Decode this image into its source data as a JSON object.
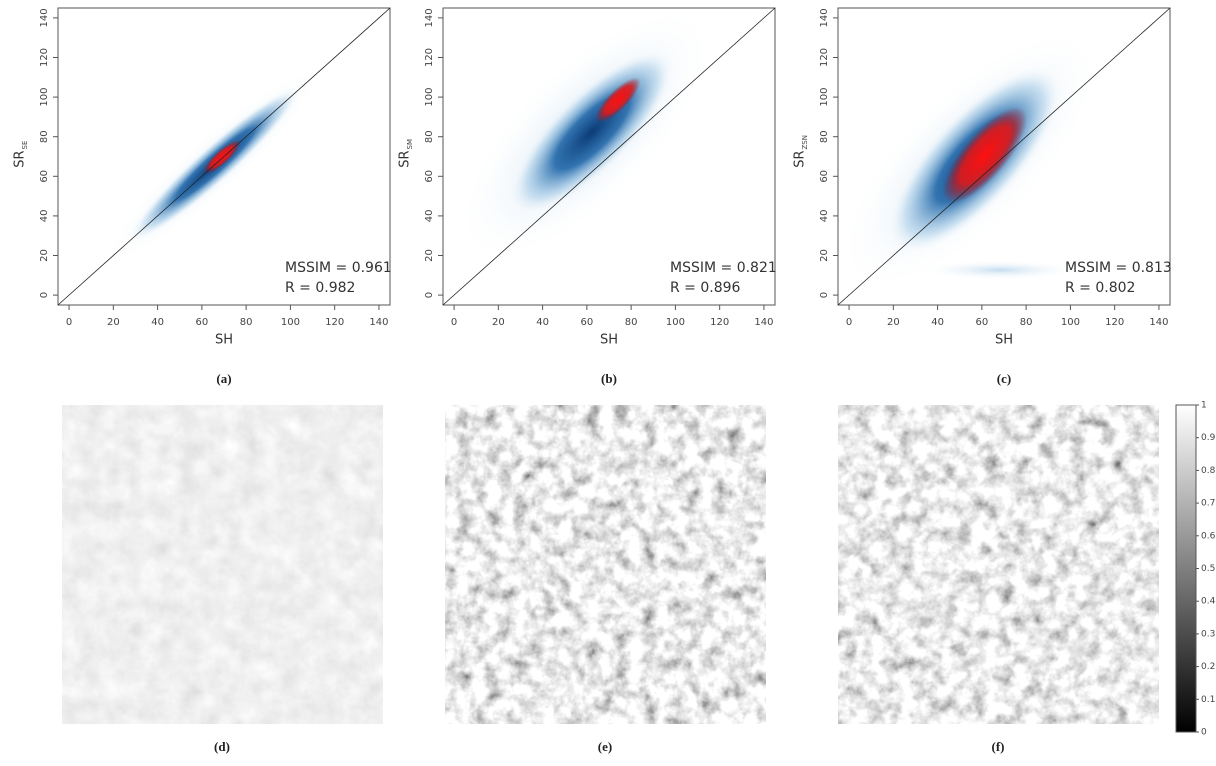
{
  "chart_data": [
    {
      "type": "density",
      "panel_label": "(a)",
      "xlabel": "SH",
      "ylabel": "SR",
      "ylabel_subscript": "SE",
      "annotations": [
        "MSSIM = 0.961",
        "R = 0.982"
      ],
      "xlim": [
        -5,
        145
      ],
      "ylim": [
        -5,
        145
      ],
      "xticks": [
        0,
        20,
        40,
        60,
        80,
        100,
        120,
        140
      ],
      "yticks": [
        0,
        20,
        40,
        60,
        80,
        100,
        120,
        140
      ]
    },
    {
      "type": "density",
      "panel_label": "(b)",
      "xlabel": "SH",
      "ylabel": "SR",
      "ylabel_subscript": "SM",
      "annotations": [
        "MSSIM = 0.821",
        "R = 0.896"
      ],
      "xlim": [
        -5,
        145
      ],
      "ylim": [
        -5,
        145
      ],
      "xticks": [
        0,
        20,
        40,
        60,
        80,
        100,
        120,
        140
      ],
      "yticks": [
        0,
        20,
        40,
        60,
        80,
        100,
        120,
        140
      ]
    },
    {
      "type": "density",
      "panel_label": "(c)",
      "xlabel": "SH",
      "ylabel": "SR",
      "ylabel_subscript": "ZSN",
      "annotations": [
        "MSSIM = 0.813",
        "R = 0.802"
      ],
      "xlim": [
        -5,
        145
      ],
      "ylim": [
        -5,
        145
      ],
      "xticks": [
        0,
        20,
        40,
        60,
        80,
        100,
        120,
        140
      ],
      "yticks": [
        0,
        20,
        40,
        60,
        80,
        100,
        120,
        140
      ]
    },
    {
      "type": "colorbar",
      "ylim": [
        0,
        1
      ],
      "yticks": [
        0,
        0.1,
        0.2,
        0.3,
        0.4,
        0.5,
        0.6,
        0.7,
        0.8,
        0.9,
        1
      ]
    }
  ],
  "image_panels": [
    {
      "label": "(d)"
    },
    {
      "label": "(e)"
    },
    {
      "label": "(f)"
    }
  ]
}
